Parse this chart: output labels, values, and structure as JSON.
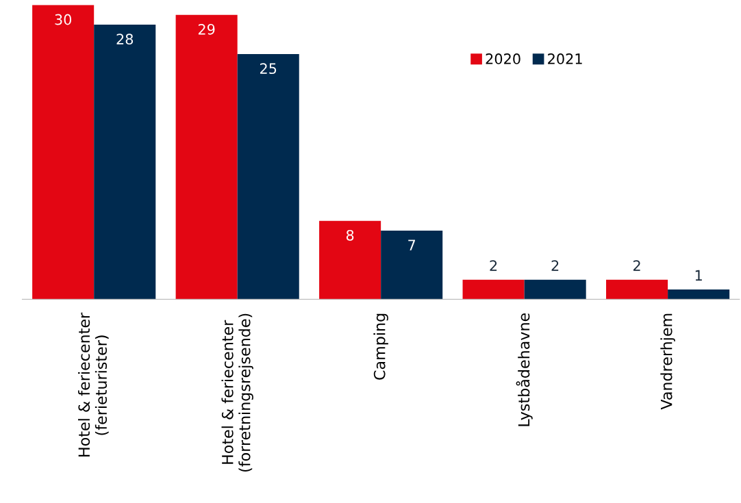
{
  "chart_data": {
    "type": "bar",
    "categories": [
      "Hotel & feriecenter\n(ferieturister)",
      "Hotel & feriecenter\n(forretningsrejsende)",
      "Camping",
      "Lystbådehavne",
      "Vandrerhjem"
    ],
    "series": [
      {
        "name": "2020",
        "color": "#e30613",
        "values": [
          30,
          29,
          8,
          2,
          2
        ]
      },
      {
        "name": "2021",
        "color": "#002a4f",
        "values": [
          28,
          25,
          7,
          2,
          1
        ]
      }
    ],
    "data_labels": true,
    "legend": "top right",
    "grid": false
  }
}
